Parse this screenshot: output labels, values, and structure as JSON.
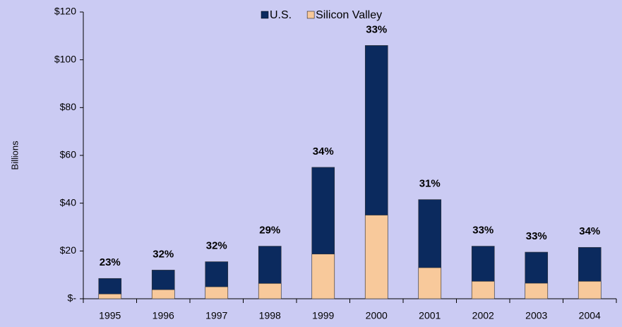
{
  "chart_data": {
    "type": "bar",
    "overlap": true,
    "y_label": "Billions",
    "categories": [
      "1995",
      "1996",
      "1997",
      "1998",
      "1999",
      "2000",
      "2001",
      "2002",
      "2003",
      "2004"
    ],
    "series": [
      {
        "name": "U.S.",
        "color": "#0b2a5e",
        "values": [
          8.5,
          12,
          15.5,
          22,
          55,
          106,
          41.5,
          22,
          19.5,
          21.5
        ]
      },
      {
        "name": "Silicon Valley",
        "color": "#f8c99b",
        "values": [
          2,
          3.8,
          5,
          6.4,
          18.7,
          35,
          13,
          7.3,
          6.5,
          7.3
        ]
      }
    ],
    "share_labels": [
      "23%",
      "32%",
      "32%",
      "29%",
      "34%",
      "33%",
      "31%",
      "33%",
      "33%",
      "34%"
    ],
    "ylim": [
      0,
      120
    ],
    "yticks": [
      {
        "value": 0,
        "label": "$-"
      },
      {
        "value": 20,
        "label": "$20"
      },
      {
        "value": 40,
        "label": "$40"
      },
      {
        "value": 60,
        "label": "$60"
      },
      {
        "value": 80,
        "label": "$80"
      },
      {
        "value": 100,
        "label": "$100"
      },
      {
        "value": 120,
        "label": "$120"
      }
    ],
    "legend": "top"
  }
}
